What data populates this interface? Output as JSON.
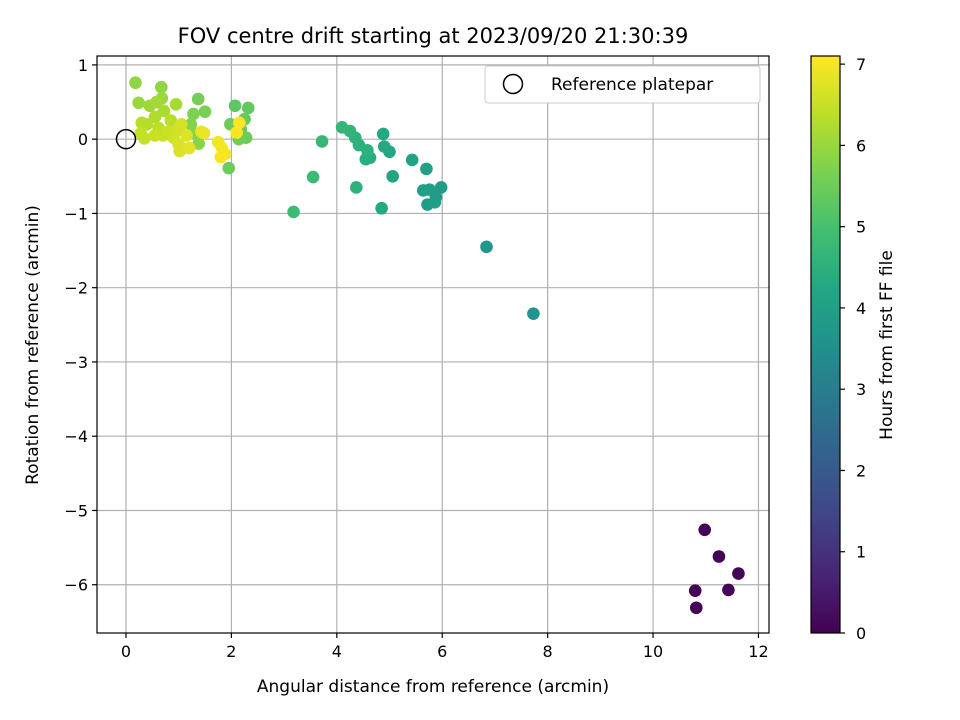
{
  "chart_data": {
    "type": "scatter",
    "title": "FOV centre drift starting at 2023/09/20 21:30:39",
    "xlabel": "Angular distance from reference (arcmin)",
    "ylabel": "Rotation from reference (arcmin)",
    "xlim": [
      -0.55,
      12.2
    ],
    "ylim": [
      -6.65,
      1.12
    ],
    "xticks": [
      0,
      2,
      4,
      6,
      8,
      10,
      12
    ],
    "yticks": [
      1,
      0,
      -1,
      -2,
      -3,
      -4,
      -5,
      -6
    ],
    "grid": true,
    "legend": {
      "position": "top-right",
      "entries": [
        "Reference platepar"
      ]
    },
    "reference_point": {
      "x": 0,
      "y": 0
    },
    "colorbar": {
      "label": "Hours from first FF file",
      "range": [
        0,
        7.1
      ],
      "ticks": [
        0,
        1,
        2,
        3,
        4,
        5,
        6,
        7
      ],
      "colormap": "viridis"
    },
    "points": [
      {
        "x": 10.98,
        "y": -5.26,
        "c": 0.05
      },
      {
        "x": 11.25,
        "y": -5.62,
        "c": 0.05
      },
      {
        "x": 11.62,
        "y": -5.85,
        "c": 0.05
      },
      {
        "x": 10.8,
        "y": -6.08,
        "c": 0.05
      },
      {
        "x": 11.43,
        "y": -6.07,
        "c": 0.05
      },
      {
        "x": 10.82,
        "y": -6.31,
        "c": 0.05
      },
      {
        "x": 7.73,
        "y": -2.35,
        "c": 3.6
      },
      {
        "x": 6.84,
        "y": -1.45,
        "c": 3.7
      },
      {
        "x": 5.98,
        "y": -0.65,
        "c": 3.9
      },
      {
        "x": 5.88,
        "y": -0.78,
        "c": 3.9
      },
      {
        "x": 5.72,
        "y": -0.88,
        "c": 3.9
      },
      {
        "x": 5.86,
        "y": -0.85,
        "c": 3.95
      },
      {
        "x": 5.76,
        "y": -0.68,
        "c": 3.95
      },
      {
        "x": 5.64,
        "y": -0.69,
        "c": 4.0
      },
      {
        "x": 5.7,
        "y": -0.4,
        "c": 4.05
      },
      {
        "x": 5.43,
        "y": -0.28,
        "c": 4.1
      },
      {
        "x": 5.06,
        "y": -0.5,
        "c": 4.15
      },
      {
        "x": 5.0,
        "y": -0.17,
        "c": 4.2
      },
      {
        "x": 4.88,
        "y": 0.07,
        "c": 4.25
      },
      {
        "x": 4.9,
        "y": -0.1,
        "c": 4.3
      },
      {
        "x": 4.85,
        "y": -0.93,
        "c": 4.3
      },
      {
        "x": 4.63,
        "y": -0.25,
        "c": 4.4
      },
      {
        "x": 4.55,
        "y": -0.27,
        "c": 4.45
      },
      {
        "x": 4.58,
        "y": -0.15,
        "c": 4.5
      },
      {
        "x": 4.42,
        "y": -0.08,
        "c": 4.5
      },
      {
        "x": 4.37,
        "y": -0.65,
        "c": 4.55
      },
      {
        "x": 4.35,
        "y": 0.02,
        "c": 4.55
      },
      {
        "x": 4.25,
        "y": 0.11,
        "c": 4.6
      },
      {
        "x": 4.1,
        "y": 0.16,
        "c": 4.65
      },
      {
        "x": 3.72,
        "y": -0.03,
        "c": 4.7
      },
      {
        "x": 3.55,
        "y": -0.51,
        "c": 4.8
      },
      {
        "x": 3.18,
        "y": -0.98,
        "c": 4.85
      },
      {
        "x": 2.07,
        "y": 0.45,
        "c": 5.3
      },
      {
        "x": 2.32,
        "y": 0.42,
        "c": 5.35
      },
      {
        "x": 2.25,
        "y": 0.27,
        "c": 5.4
      },
      {
        "x": 2.18,
        "y": 0.13,
        "c": 5.45
      },
      {
        "x": 1.98,
        "y": 0.2,
        "c": 5.5
      },
      {
        "x": 2.28,
        "y": 0.02,
        "c": 5.5
      },
      {
        "x": 2.14,
        "y": 0.0,
        "c": 5.55
      },
      {
        "x": 1.95,
        "y": -0.39,
        "c": 5.5
      },
      {
        "x": 1.37,
        "y": 0.54,
        "c": 5.6
      },
      {
        "x": 1.5,
        "y": 0.37,
        "c": 5.65
      },
      {
        "x": 1.28,
        "y": 0.34,
        "c": 5.7
      },
      {
        "x": 1.23,
        "y": 0.2,
        "c": 5.75
      },
      {
        "x": 1.34,
        "y": 0.07,
        "c": 5.8
      },
      {
        "x": 1.38,
        "y": -0.06,
        "c": 5.85
      },
      {
        "x": 0.18,
        "y": 0.76,
        "c": 5.9
      },
      {
        "x": 0.67,
        "y": 0.7,
        "c": 5.9
      },
      {
        "x": 0.24,
        "y": 0.49,
        "c": 6.0
      },
      {
        "x": 0.68,
        "y": 0.55,
        "c": 6.0
      },
      {
        "x": 0.45,
        "y": 0.45,
        "c": 6.05
      },
      {
        "x": 0.58,
        "y": 0.5,
        "c": 6.1
      },
      {
        "x": 0.95,
        "y": 0.47,
        "c": 6.15
      },
      {
        "x": 0.72,
        "y": 0.38,
        "c": 6.2
      },
      {
        "x": 0.55,
        "y": 0.3,
        "c": 6.25
      },
      {
        "x": 0.3,
        "y": 0.22,
        "c": 6.3
      },
      {
        "x": 0.4,
        "y": 0.2,
        "c": 6.3
      },
      {
        "x": 0.85,
        "y": 0.25,
        "c": 6.35
      },
      {
        "x": 0.62,
        "y": 0.15,
        "c": 6.4
      },
      {
        "x": 0.28,
        "y": 0.08,
        "c": 6.45
      },
      {
        "x": 0.35,
        "y": 0.01,
        "c": 6.45
      },
      {
        "x": 0.55,
        "y": 0.05,
        "c": 6.5
      },
      {
        "x": 0.7,
        "y": 0.05,
        "c": 6.5
      },
      {
        "x": 0.8,
        "y": 0.1,
        "c": 6.55
      },
      {
        "x": 0.9,
        "y": 0.02,
        "c": 6.6
      },
      {
        "x": 0.98,
        "y": 0.12,
        "c": 6.6
      },
      {
        "x": 1.05,
        "y": 0.2,
        "c": 6.65
      },
      {
        "x": 1.0,
        "y": -0.07,
        "c": 6.7
      },
      {
        "x": 1.02,
        "y": -0.16,
        "c": 6.7
      },
      {
        "x": 1.15,
        "y": 0.05,
        "c": 6.75
      },
      {
        "x": 1.2,
        "y": -0.12,
        "c": 6.8
      },
      {
        "x": 1.43,
        "y": 0.1,
        "c": 6.85
      },
      {
        "x": 1.48,
        "y": 0.08,
        "c": 6.9
      },
      {
        "x": 1.75,
        "y": -0.04,
        "c": 6.95
      },
      {
        "x": 1.82,
        "y": -0.12,
        "c": 7.0
      },
      {
        "x": 1.88,
        "y": -0.2,
        "c": 7.0
      },
      {
        "x": 1.8,
        "y": -0.24,
        "c": 7.05
      },
      {
        "x": 2.1,
        "y": 0.09,
        "c": 7.05
      },
      {
        "x": 2.15,
        "y": 0.22,
        "c": 7.1
      }
    ]
  }
}
